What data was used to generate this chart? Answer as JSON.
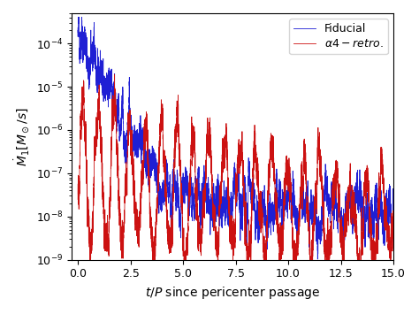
{
  "xlabel": "$t/P$ since pericenter passage",
  "ylabel": "$\\dot{M}_1[M_\\odot/s]$",
  "xlim": [
    -0.3,
    15.0
  ],
  "ylim": [
    1e-09,
    0.0005
  ],
  "blue_label": "Fiducial",
  "red_label": "$\\alpha4 - retro.$",
  "blue_color": "#1f1fd4",
  "red_color": "#cc1111",
  "linewidth": 0.6,
  "legend_loc": "upper right",
  "figsize": [
    4.74,
    3.55
  ],
  "dpi": 100,
  "xticks": [
    0.0,
    2.5,
    5.0,
    7.5,
    10.0,
    12.5,
    15.0
  ],
  "xtick_labels": [
    "0.0",
    "2.5",
    "5.0",
    "7.5",
    "10.0",
    "12.5",
    "15.0"
  ]
}
